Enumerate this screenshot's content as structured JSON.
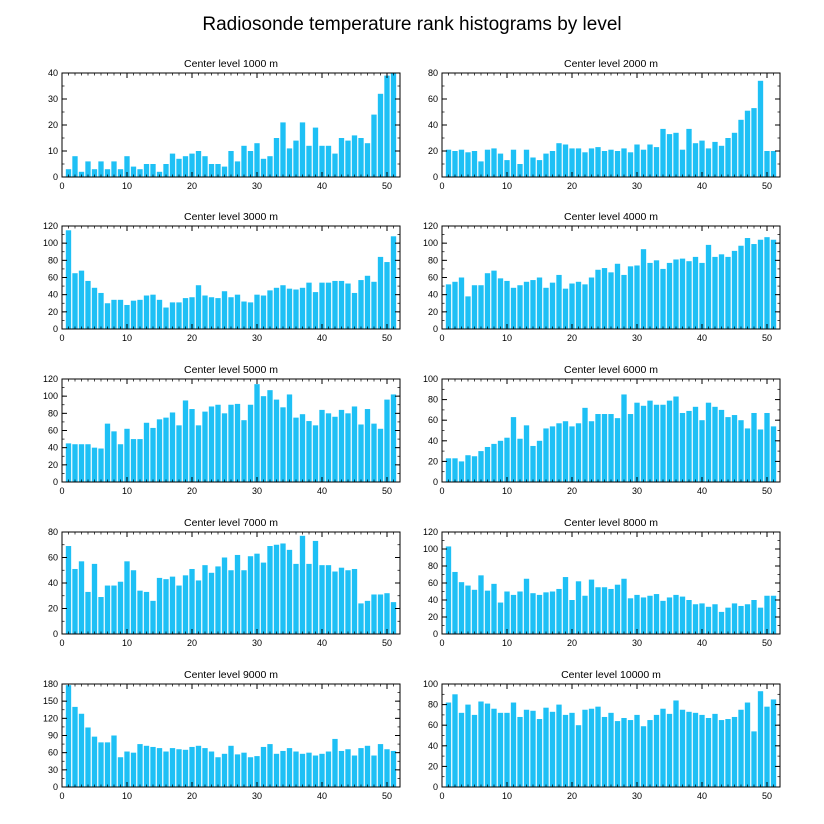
{
  "title": "Radiosonde temperature rank histograms by level",
  "colors": {
    "bar": "#1ec0f5",
    "axis": "#000000",
    "background": "#ffffff"
  },
  "chart_data": [
    {
      "type": "bar",
      "title": "Center level 1000 m",
      "xlim": [
        0,
        52
      ],
      "ylim": [
        0,
        40
      ],
      "xticks": [
        0,
        10,
        20,
        30,
        40,
        50
      ],
      "yticks": [
        0,
        10,
        20,
        30,
        40
      ],
      "x": [
        1,
        2,
        3,
        4,
        5,
        6,
        7,
        8,
        9,
        10,
        11,
        12,
        13,
        14,
        15,
        16,
        17,
        18,
        19,
        20,
        21,
        22,
        23,
        24,
        25,
        26,
        27,
        28,
        29,
        30,
        31,
        32,
        33,
        34,
        35,
        36,
        37,
        38,
        39,
        40,
        41,
        42,
        43,
        44,
        45,
        46,
        47,
        48,
        49,
        50,
        51
      ],
      "values": [
        3,
        8,
        2,
        6,
        3,
        6,
        3,
        6,
        3,
        8,
        4,
        3,
        5,
        5,
        2,
        5,
        9,
        7,
        8,
        9,
        10,
        8,
        5,
        5,
        4,
        10,
        6,
        12,
        10,
        13,
        7,
        8,
        15,
        21,
        11,
        14,
        21,
        12,
        19,
        12,
        12,
        9,
        15,
        14,
        16,
        15,
        13,
        24,
        32,
        39,
        40
      ]
    },
    {
      "type": "bar",
      "title": "Center level 2000 m",
      "xlim": [
        0,
        52
      ],
      "ylim": [
        0,
        80
      ],
      "xticks": [
        0,
        10,
        20,
        30,
        40,
        50
      ],
      "yticks": [
        0,
        20,
        40,
        60,
        80
      ],
      "x": [
        1,
        2,
        3,
        4,
        5,
        6,
        7,
        8,
        9,
        10,
        11,
        12,
        13,
        14,
        15,
        16,
        17,
        18,
        19,
        20,
        21,
        22,
        23,
        24,
        25,
        26,
        27,
        28,
        29,
        30,
        31,
        32,
        33,
        34,
        35,
        36,
        37,
        38,
        39,
        40,
        41,
        42,
        43,
        44,
        45,
        46,
        47,
        48,
        49,
        50,
        51
      ],
      "values": [
        21,
        20,
        21,
        19,
        20,
        12,
        21,
        22,
        18,
        13,
        21,
        10,
        21,
        15,
        13,
        18,
        20,
        26,
        25,
        22,
        22,
        19,
        22,
        23,
        20,
        21,
        20,
        22,
        19,
        25,
        21,
        25,
        23,
        37,
        33,
        34,
        21,
        37,
        26,
        28,
        22,
        27,
        24,
        30,
        34,
        44,
        51,
        53,
        74,
        20,
        20
      ]
    },
    {
      "type": "bar",
      "title": "Center level 3000 m",
      "xlim": [
        0,
        52
      ],
      "ylim": [
        0,
        120
      ],
      "xticks": [
        0,
        10,
        20,
        30,
        40,
        50
      ],
      "yticks": [
        0,
        20,
        40,
        60,
        80,
        100,
        120
      ],
      "x": [
        1,
        2,
        3,
        4,
        5,
        6,
        7,
        8,
        9,
        10,
        11,
        12,
        13,
        14,
        15,
        16,
        17,
        18,
        19,
        20,
        21,
        22,
        23,
        24,
        25,
        26,
        27,
        28,
        29,
        30,
        31,
        32,
        33,
        34,
        35,
        36,
        37,
        38,
        39,
        40,
        41,
        42,
        43,
        44,
        45,
        46,
        47,
        48,
        49,
        50,
        51
      ],
      "values": [
        115,
        65,
        68,
        56,
        48,
        42,
        30,
        34,
        34,
        28,
        33,
        34,
        39,
        40,
        34,
        25,
        31,
        31,
        36,
        37,
        51,
        39,
        37,
        36,
        44,
        37,
        40,
        32,
        31,
        40,
        39,
        45,
        48,
        51,
        47,
        46,
        48,
        54,
        43,
        54,
        54,
        56,
        56,
        53,
        42,
        57,
        62,
        55,
        84,
        78,
        108
      ]
    },
    {
      "type": "bar",
      "title": "Center level 4000 m",
      "xlim": [
        0,
        52
      ],
      "ylim": [
        0,
        120
      ],
      "xticks": [
        0,
        10,
        20,
        30,
        40,
        50
      ],
      "yticks": [
        0,
        20,
        40,
        60,
        80,
        100,
        120
      ],
      "x": [
        1,
        2,
        3,
        4,
        5,
        6,
        7,
        8,
        9,
        10,
        11,
        12,
        13,
        14,
        15,
        16,
        17,
        18,
        19,
        20,
        21,
        22,
        23,
        24,
        25,
        26,
        27,
        28,
        29,
        30,
        31,
        32,
        33,
        34,
        35,
        36,
        37,
        38,
        39,
        40,
        41,
        42,
        43,
        44,
        45,
        46,
        47,
        48,
        49,
        50,
        51
      ],
      "values": [
        52,
        55,
        60,
        38,
        51,
        51,
        65,
        68,
        59,
        56,
        48,
        51,
        55,
        57,
        60,
        48,
        54,
        63,
        47,
        53,
        55,
        52,
        60,
        69,
        71,
        66,
        76,
        63,
        73,
        74,
        93,
        77,
        80,
        70,
        77,
        81,
        82,
        79,
        84,
        77,
        98,
        84,
        87,
        84,
        91,
        97,
        106,
        99,
        104,
        107,
        104
      ]
    },
    {
      "type": "bar",
      "title": "Center level 5000 m",
      "xlim": [
        0,
        52
      ],
      "ylim": [
        0,
        120
      ],
      "xticks": [
        0,
        10,
        20,
        30,
        40,
        50
      ],
      "yticks": [
        0,
        20,
        40,
        60,
        80,
        100,
        120
      ],
      "x": [
        1,
        2,
        3,
        4,
        5,
        6,
        7,
        8,
        9,
        10,
        11,
        12,
        13,
        14,
        15,
        16,
        17,
        18,
        19,
        20,
        21,
        22,
        23,
        24,
        25,
        26,
        27,
        28,
        29,
        30,
        31,
        32,
        33,
        34,
        35,
        36,
        37,
        38,
        39,
        40,
        41,
        42,
        43,
        44,
        45,
        46,
        47,
        48,
        49,
        50,
        51
      ],
      "values": [
        45,
        44,
        44,
        44,
        40,
        39,
        68,
        59,
        44,
        62,
        50,
        50,
        69,
        63,
        73,
        75,
        81,
        66,
        95,
        85,
        66,
        82,
        88,
        90,
        80,
        90,
        91,
        72,
        90,
        114,
        100,
        107,
        96,
        87,
        102,
        75,
        79,
        71,
        66,
        84,
        80,
        76,
        84,
        80,
        88,
        67,
        85,
        68,
        62,
        96,
        102
      ]
    },
    {
      "type": "bar",
      "title": "Center level 6000 m",
      "xlim": [
        0,
        52
      ],
      "ylim": [
        0,
        100
      ],
      "xticks": [
        0,
        10,
        20,
        30,
        40,
        50
      ],
      "yticks": [
        0,
        20,
        40,
        60,
        80,
        100
      ],
      "x": [
        1,
        2,
        3,
        4,
        5,
        6,
        7,
        8,
        9,
        10,
        11,
        12,
        13,
        14,
        15,
        16,
        17,
        18,
        19,
        20,
        21,
        22,
        23,
        24,
        25,
        26,
        27,
        28,
        29,
        30,
        31,
        32,
        33,
        34,
        35,
        36,
        37,
        38,
        39,
        40,
        41,
        42,
        43,
        44,
        45,
        46,
        47,
        48,
        49,
        50,
        51
      ],
      "values": [
        23,
        23,
        20,
        26,
        25,
        30,
        34,
        37,
        40,
        43,
        63,
        42,
        55,
        35,
        40,
        52,
        54,
        57,
        59,
        54,
        57,
        72,
        59,
        66,
        66,
        66,
        62,
        85,
        66,
        77,
        74,
        79,
        75,
        75,
        79,
        83,
        67,
        69,
        73,
        60,
        77,
        73,
        70,
        63,
        65,
        60,
        52,
        67,
        51,
        67,
        54
      ]
    },
    {
      "type": "bar",
      "title": "Center level 7000 m",
      "xlim": [
        0,
        52
      ],
      "ylim": [
        0,
        80
      ],
      "xticks": [
        0,
        10,
        20,
        30,
        40,
        50
      ],
      "yticks": [
        0,
        20,
        40,
        60,
        80
      ],
      "x": [
        1,
        2,
        3,
        4,
        5,
        6,
        7,
        8,
        9,
        10,
        11,
        12,
        13,
        14,
        15,
        16,
        17,
        18,
        19,
        20,
        21,
        22,
        23,
        24,
        25,
        26,
        27,
        28,
        29,
        30,
        31,
        32,
        33,
        34,
        35,
        36,
        37,
        38,
        39,
        40,
        41,
        42,
        43,
        44,
        45,
        46,
        47,
        48,
        49,
        50,
        51
      ],
      "values": [
        69,
        51,
        57,
        33,
        55,
        29,
        38,
        38,
        41,
        57,
        50,
        34,
        33,
        26,
        44,
        43,
        45,
        38,
        46,
        51,
        42,
        54,
        48,
        53,
        60,
        50,
        62,
        50,
        61,
        63,
        56,
        69,
        70,
        71,
        66,
        55,
        77,
        55,
        73,
        54,
        54,
        49,
        52,
        50,
        51,
        24,
        26,
        31,
        31,
        32,
        25
      ]
    },
    {
      "type": "bar",
      "title": "Center level 8000 m",
      "xlim": [
        0,
        52
      ],
      "ylim": [
        0,
        120
      ],
      "xticks": [
        0,
        10,
        20,
        30,
        40,
        50
      ],
      "yticks": [
        0,
        20,
        40,
        60,
        80,
        100,
        120
      ],
      "x": [
        1,
        2,
        3,
        4,
        5,
        6,
        7,
        8,
        9,
        10,
        11,
        12,
        13,
        14,
        15,
        16,
        17,
        18,
        19,
        20,
        21,
        22,
        23,
        24,
        25,
        26,
        27,
        28,
        29,
        30,
        31,
        32,
        33,
        34,
        35,
        36,
        37,
        38,
        39,
        40,
        41,
        42,
        43,
        44,
        45,
        46,
        47,
        48,
        49,
        50,
        51
      ],
      "values": [
        103,
        73,
        61,
        57,
        52,
        69,
        51,
        59,
        37,
        50,
        46,
        50,
        65,
        48,
        46,
        49,
        50,
        53,
        67,
        40,
        62,
        45,
        64,
        55,
        55,
        53,
        58,
        65,
        42,
        46,
        43,
        45,
        47,
        39,
        43,
        46,
        44,
        40,
        35,
        36,
        32,
        35,
        26,
        31,
        36,
        33,
        35,
        40,
        31,
        45,
        45
      ]
    },
    {
      "type": "bar",
      "title": "Center level 9000 m",
      "xlim": [
        0,
        52
      ],
      "ylim": [
        0,
        180
      ],
      "xticks": [
        0,
        10,
        20,
        30,
        40,
        50
      ],
      "yticks": [
        0,
        30,
        60,
        90,
        120,
        150,
        180
      ],
      "x": [
        1,
        2,
        3,
        4,
        5,
        6,
        7,
        8,
        9,
        10,
        11,
        12,
        13,
        14,
        15,
        16,
        17,
        18,
        19,
        20,
        21,
        22,
        23,
        24,
        25,
        26,
        27,
        28,
        29,
        30,
        31,
        32,
        33,
        34,
        35,
        36,
        37,
        38,
        39,
        40,
        41,
        42,
        43,
        44,
        45,
        46,
        47,
        48,
        49,
        50,
        51
      ],
      "values": [
        178,
        140,
        128,
        104,
        88,
        78,
        78,
        90,
        52,
        62,
        60,
        75,
        72,
        70,
        68,
        62,
        68,
        66,
        65,
        70,
        72,
        68,
        62,
        52,
        58,
        72,
        57,
        60,
        52,
        54,
        70,
        75,
        58,
        63,
        68,
        62,
        58,
        60,
        55,
        58,
        62,
        84,
        63,
        66,
        55,
        68,
        72,
        55,
        75,
        66,
        63
      ]
    },
    {
      "type": "bar",
      "title": "Center level 10000 m",
      "xlim": [
        0,
        52
      ],
      "ylim": [
        0,
        100
      ],
      "xticks": [
        0,
        10,
        20,
        30,
        40,
        50
      ],
      "yticks": [
        0,
        20,
        40,
        60,
        80,
        100
      ],
      "x": [
        1,
        2,
        3,
        4,
        5,
        6,
        7,
        8,
        9,
        10,
        11,
        12,
        13,
        14,
        15,
        16,
        17,
        18,
        19,
        20,
        21,
        22,
        23,
        24,
        25,
        26,
        27,
        28,
        29,
        30,
        31,
        32,
        33,
        34,
        35,
        36,
        37,
        38,
        39,
        40,
        41,
        42,
        43,
        44,
        45,
        46,
        47,
        48,
        49,
        50,
        51
      ],
      "values": [
        82,
        90,
        72,
        80,
        70,
        83,
        81,
        76,
        72,
        72,
        82,
        68,
        75,
        74,
        66,
        77,
        73,
        80,
        70,
        72,
        60,
        75,
        76,
        78,
        68,
        72,
        64,
        67,
        65,
        70,
        59,
        65,
        70,
        76,
        71,
        84,
        75,
        73,
        72,
        70,
        67,
        71,
        65,
        66,
        68,
        75,
        82,
        54,
        93,
        78,
        85
      ]
    }
  ]
}
